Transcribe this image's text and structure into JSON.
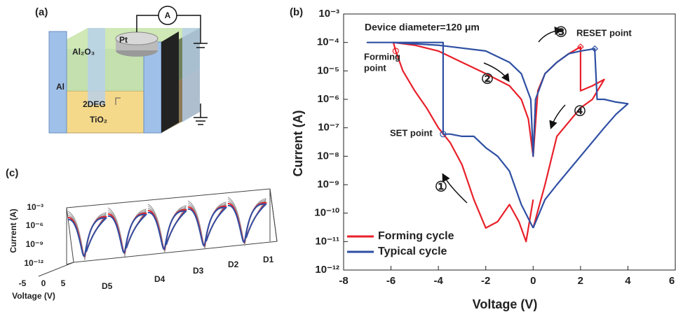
{
  "chart_data": {
    "type": "line",
    "x_label": "Voltage (V)",
    "y_label": "Current (A)",
    "panel_label": "(b)",
    "xlim": [
      -8,
      6
    ],
    "xticks": [
      -8,
      -6,
      -4,
      -2,
      0,
      2,
      4,
      6
    ],
    "ylim": [
      1e-12,
      0.001
    ],
    "log_y": true,
    "yticks": [
      {
        "value": 0.001,
        "label": "10⁻³"
      },
      {
        "value": 0.0001,
        "label": "10⁻⁴"
      },
      {
        "value": 1e-05,
        "label": "10⁻⁵"
      },
      {
        "value": 1e-06,
        "label": "10⁻⁶"
      },
      {
        "value": 1e-07,
        "label": "10⁻⁷"
      },
      {
        "value": 1e-08,
        "label": "10⁻⁸"
      },
      {
        "value": 1e-09,
        "label": "10⁻⁹"
      },
      {
        "value": 1e-10,
        "label": "10⁻¹⁰"
      },
      {
        "value": 1e-11,
        "label": "10⁻¹¹"
      },
      {
        "value": 1e-12,
        "label": "10⁻¹²"
      }
    ],
    "legend": "lower left",
    "series": [
      {
        "name": "Forming cycle",
        "color": "#e8202a",
        "x": [
          0,
          -0.3,
          -0.6,
          -1,
          -1.5,
          -2,
          -2.5,
          -3,
          -3.5,
          -4,
          -4.5,
          -5,
          -5.5,
          -5.8,
          -5.9,
          -5,
          -4,
          -3,
          -2,
          -1,
          -0.5,
          -0.2,
          0,
          0.2,
          0.5,
          1,
          1.5,
          2,
          2,
          2.5,
          3,
          2.5,
          2,
          1,
          0.5,
          0
        ],
        "values": [
          3e-10,
          1e-11,
          5e-11,
          2e-10,
          5e-11,
          3e-11,
          3e-10,
          5e-09,
          3e-08,
          1e-07,
          5e-07,
          2e-06,
          1e-05,
          5e-05,
          0.0001,
          8e-05,
          5e-05,
          2e-05,
          8e-06,
          3e-06,
          1e-06,
          2e-07,
          1e-08,
          2e-06,
          8e-06,
          2e-05,
          4e-05,
          7e-05,
          2e-06,
          3e-06,
          5e-06,
          1e-06,
          5e-07,
          5e-08,
          1e-09,
          3e-11
        ]
      },
      {
        "name": "Typical cycle",
        "color": "#2e4fa3",
        "x": [
          0,
          -0.5,
          -1,
          -1.5,
          -2,
          -2.5,
          -3,
          -3.5,
          -3.8,
          -3.8,
          -5,
          -6,
          -7,
          -6,
          -4,
          -2,
          -1,
          -0.5,
          -0.1,
          0,
          0.1,
          0.5,
          1,
          1.5,
          2,
          2.6,
          2.7,
          3,
          3.5,
          4,
          3.5,
          3,
          2,
          1,
          0.5,
          0
        ],
        "values": [
          3e-11,
          2e-10,
          3e-09,
          1e-08,
          2e-08,
          5e-08,
          5e-08,
          6e-08,
          6e-08,
          0.0001,
          0.0001,
          0.0001,
          0.0001,
          0.0001,
          8e-05,
          5e-05,
          2e-05,
          8e-06,
          1e-06,
          1e-08,
          1e-06,
          8e-06,
          2e-05,
          4e-05,
          5e-05,
          6e-05,
          1e-06,
          1e-06,
          8e-07,
          7e-07,
          3e-07,
          1e-07,
          1e-08,
          1e-09,
          3e-10,
          3e-11
        ]
      }
    ],
    "annotations": [
      "Device diameter=120 μm",
      "Forming",
      "point",
      "SET point",
      "RESET point",
      "①",
      "②",
      "③",
      "④"
    ]
  },
  "panel_a": {
    "panel_label": "(a)",
    "labels": [
      "Pt",
      "A",
      "Al₂O₃",
      "Al",
      "2DEG",
      "TiO₂"
    ]
  },
  "panel_c": {
    "panel_label": "(c)",
    "y_label": "Current (A)",
    "x_label": "Voltage (V)",
    "yticks": [
      "10⁻³",
      "10⁻⁶",
      "10⁻⁹",
      "10⁻¹²"
    ],
    "xticks": [
      "-5",
      "0",
      "5"
    ],
    "devices": [
      "D5",
      "D4",
      "D3",
      "D2",
      "D1"
    ]
  }
}
